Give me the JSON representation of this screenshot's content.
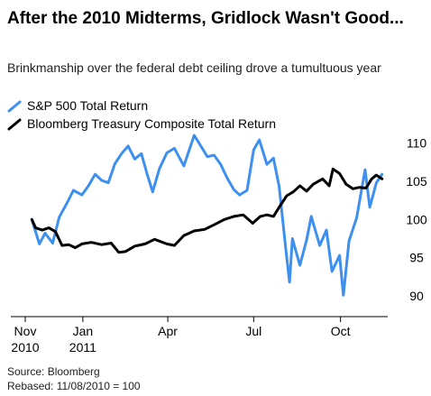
{
  "header": {
    "title": "After the 2010 Midterms, Gridlock Wasn't Good...",
    "subtitle": "Brinkmanship over the federal debt ceiling drove a tumultuous year"
  },
  "footer": {
    "source": "Source: Bloomberg",
    "note": "Rebased: 11/08/2010 = 100"
  },
  "colors": {
    "sp500": "#3d8ff0",
    "treasury": "#000000"
  },
  "chart_data": {
    "type": "line",
    "title": "After the 2010 Midterms, Gridlock Wasn't Good...",
    "subtitle": "Brinkmanship over the federal debt ceiling drove a tumultuous year",
    "xlabel": "",
    "ylabel": "",
    "x_ticks": [
      {
        "date": "2010-11-01",
        "label": "Nov",
        "sublabel": "2010"
      },
      {
        "date": "2011-01-01",
        "label": "Jan",
        "sublabel": "2011"
      },
      {
        "date": "2011-04-01",
        "label": "Apr",
        "sublabel": ""
      },
      {
        "date": "2011-07-01",
        "label": "Jul",
        "sublabel": ""
      },
      {
        "date": "2011-10-01",
        "label": "Oct",
        "sublabel": ""
      }
    ],
    "xlim": [
      "2010-11-01",
      "2011-11-20"
    ],
    "ylim": [
      88,
      111
    ],
    "y_ticks": [
      90,
      95,
      100,
      105,
      110
    ],
    "y_axis_position": "right",
    "grid": false,
    "legend_position": "top-left",
    "series": [
      {
        "name": "S&P 500 Total Return",
        "color": "#3d8ff0",
        "points": [
          [
            "2010-11-08",
            100.0
          ],
          [
            "2010-11-16",
            96.8
          ],
          [
            "2010-11-22",
            98.2
          ],
          [
            "2010-11-30",
            96.9
          ],
          [
            "2010-12-07",
            100.3
          ],
          [
            "2010-12-15",
            102.1
          ],
          [
            "2010-12-22",
            103.8
          ],
          [
            "2010-12-31",
            103.2
          ],
          [
            "2011-01-07",
            104.4
          ],
          [
            "2011-01-14",
            105.9
          ],
          [
            "2011-01-21",
            105.1
          ],
          [
            "2011-01-28",
            104.8
          ],
          [
            "2011-02-04",
            107.3
          ],
          [
            "2011-02-11",
            108.6
          ],
          [
            "2011-02-18",
            109.6
          ],
          [
            "2011-02-25",
            107.9
          ],
          [
            "2011-03-04",
            108.6
          ],
          [
            "2011-03-10",
            106.0
          ],
          [
            "2011-03-16",
            103.6
          ],
          [
            "2011-03-23",
            106.6
          ],
          [
            "2011-03-31",
            108.7
          ],
          [
            "2011-04-08",
            109.3
          ],
          [
            "2011-04-18",
            107.0
          ],
          [
            "2011-04-29",
            111.0
          ],
          [
            "2011-05-06",
            109.6
          ],
          [
            "2011-05-13",
            108.2
          ],
          [
            "2011-05-20",
            108.4
          ],
          [
            "2011-05-27",
            107.2
          ],
          [
            "2011-06-03",
            105.4
          ],
          [
            "2011-06-10",
            103.9
          ],
          [
            "2011-06-16",
            103.2
          ],
          [
            "2011-06-24",
            103.8
          ],
          [
            "2011-07-01",
            109.1
          ],
          [
            "2011-07-07",
            110.4
          ],
          [
            "2011-07-15",
            107.2
          ],
          [
            "2011-07-22",
            108.0
          ],
          [
            "2011-07-28",
            104.3
          ],
          [
            "2011-08-04",
            96.2
          ],
          [
            "2011-08-08",
            91.8
          ],
          [
            "2011-08-11",
            97.5
          ],
          [
            "2011-08-19",
            94.0
          ],
          [
            "2011-08-26",
            97.3
          ],
          [
            "2011-08-31",
            100.4
          ],
          [
            "2011-09-09",
            96.6
          ],
          [
            "2011-09-16",
            98.6
          ],
          [
            "2011-09-22",
            93.2
          ],
          [
            "2011-09-30",
            95.3
          ],
          [
            "2011-10-04",
            90.1
          ],
          [
            "2011-10-10",
            97.2
          ],
          [
            "2011-10-18",
            100.2
          ],
          [
            "2011-10-27",
            106.5
          ],
          [
            "2011-11-01",
            101.6
          ],
          [
            "2011-11-08",
            104.8
          ],
          [
            "2011-11-14",
            105.9
          ]
        ]
      },
      {
        "name": "Bloomberg Treasury Composite Total Return",
        "color": "#000000",
        "points": [
          [
            "2010-11-08",
            100.0
          ],
          [
            "2010-11-12",
            98.9
          ],
          [
            "2010-11-19",
            98.6
          ],
          [
            "2010-11-26",
            98.9
          ],
          [
            "2010-12-03",
            98.4
          ],
          [
            "2010-12-10",
            96.6
          ],
          [
            "2010-12-17",
            96.7
          ],
          [
            "2010-12-24",
            96.3
          ],
          [
            "2010-12-31",
            96.8
          ],
          [
            "2011-01-10",
            97.0
          ],
          [
            "2011-01-21",
            96.7
          ],
          [
            "2011-01-31",
            96.9
          ],
          [
            "2011-02-08",
            95.7
          ],
          [
            "2011-02-15",
            95.8
          ],
          [
            "2011-02-25",
            96.5
          ],
          [
            "2011-03-08",
            96.8
          ],
          [
            "2011-03-18",
            97.4
          ],
          [
            "2011-03-31",
            96.8
          ],
          [
            "2011-04-08",
            96.6
          ],
          [
            "2011-04-18",
            97.9
          ],
          [
            "2011-04-29",
            98.5
          ],
          [
            "2011-05-10",
            98.7
          ],
          [
            "2011-05-20",
            99.3
          ],
          [
            "2011-05-31",
            100.0
          ],
          [
            "2011-06-10",
            100.4
          ],
          [
            "2011-06-20",
            100.6
          ],
          [
            "2011-06-30",
            99.5
          ],
          [
            "2011-07-08",
            100.4
          ],
          [
            "2011-07-15",
            100.6
          ],
          [
            "2011-07-22",
            100.4
          ],
          [
            "2011-07-29",
            101.8
          ],
          [
            "2011-08-05",
            103.1
          ],
          [
            "2011-08-12",
            103.6
          ],
          [
            "2011-08-19",
            104.4
          ],
          [
            "2011-08-26",
            103.7
          ],
          [
            "2011-09-02",
            104.6
          ],
          [
            "2011-09-12",
            105.3
          ],
          [
            "2011-09-19",
            104.4
          ],
          [
            "2011-09-23",
            106.6
          ],
          [
            "2011-09-30",
            106.0
          ],
          [
            "2011-10-07",
            104.6
          ],
          [
            "2011-10-14",
            104.0
          ],
          [
            "2011-10-21",
            104.2
          ],
          [
            "2011-10-28",
            104.1
          ],
          [
            "2011-11-03",
            105.3
          ],
          [
            "2011-11-08",
            105.8
          ],
          [
            "2011-11-14",
            105.3
          ]
        ]
      }
    ]
  }
}
